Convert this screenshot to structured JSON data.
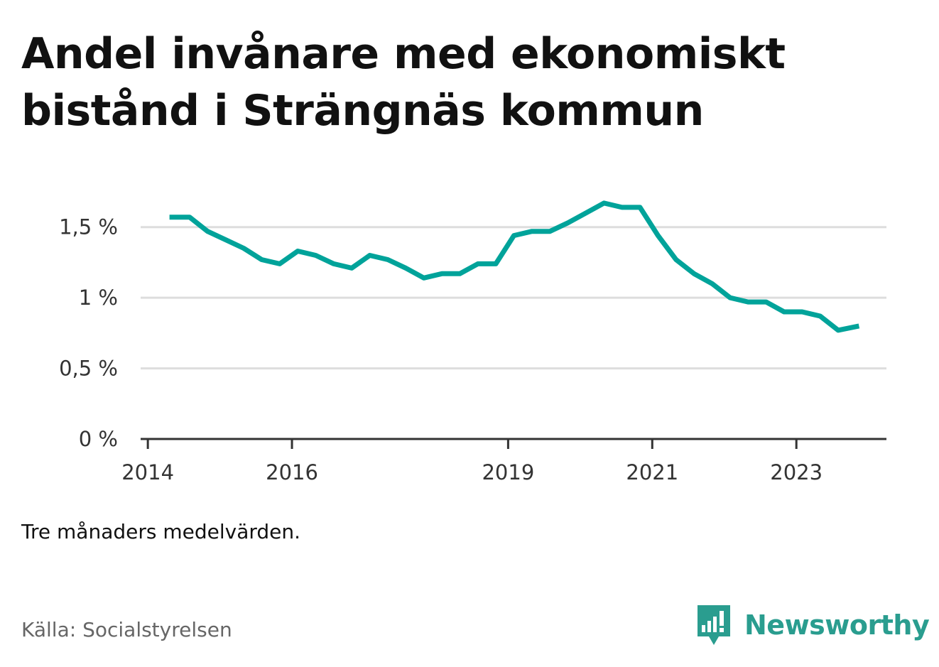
{
  "chart_data": {
    "type": "line",
    "title": "Andel invånare med ekonomiskt bistånd i Strängnäs kommun",
    "note": "Tre månaders medelvärden.",
    "source": "Källa: Socialstyrelsen",
    "brand": "Newsworthy",
    "color": "#00a39a",
    "y_unit": "%",
    "ylim": [
      0,
      1.75
    ],
    "y_ticks": [
      {
        "value": 0,
        "label": "0 %"
      },
      {
        "value": 0.5,
        "label": "0,5 %"
      },
      {
        "value": 1,
        "label": "1 %"
      },
      {
        "value": 1.5,
        "label": "1,5 %"
      }
    ],
    "xlim": [
      2013.9,
      2024.25
    ],
    "x_ticks": [
      {
        "value": 2014,
        "label": "2014"
      },
      {
        "value": 2016,
        "label": "2016"
      },
      {
        "value": 2019,
        "label": "2019"
      },
      {
        "value": 2021,
        "label": "2021"
      },
      {
        "value": 2023,
        "label": "2023"
      }
    ],
    "grid": true,
    "series": [
      {
        "x": [
          2014.3,
          2014.58,
          2014.83,
          2015.08,
          2015.33,
          2015.58,
          2015.83,
          2016.08,
          2016.33,
          2016.58,
          2016.83,
          2017.08,
          2017.33,
          2017.58,
          2017.83,
          2018.08,
          2018.33,
          2018.58,
          2018.83,
          2019.08,
          2019.33,
          2019.58,
          2019.83,
          2020.08,
          2020.33,
          2020.58,
          2020.83,
          2021.08,
          2021.33,
          2021.58,
          2021.83,
          2022.08,
          2022.33,
          2022.58,
          2022.83,
          2023.08,
          2023.33,
          2023.58,
          2023.87
        ],
        "values": [
          1.57,
          1.57,
          1.47,
          1.41,
          1.35,
          1.27,
          1.24,
          1.33,
          1.3,
          1.24,
          1.21,
          1.3,
          1.27,
          1.21,
          1.14,
          1.17,
          1.17,
          1.24,
          1.24,
          1.44,
          1.47,
          1.47,
          1.53,
          1.6,
          1.67,
          1.64,
          1.64,
          1.44,
          1.27,
          1.17,
          1.1,
          1.0,
          0.97,
          0.97,
          0.9,
          0.9,
          0.87,
          0.77,
          0.8
        ]
      }
    ]
  }
}
